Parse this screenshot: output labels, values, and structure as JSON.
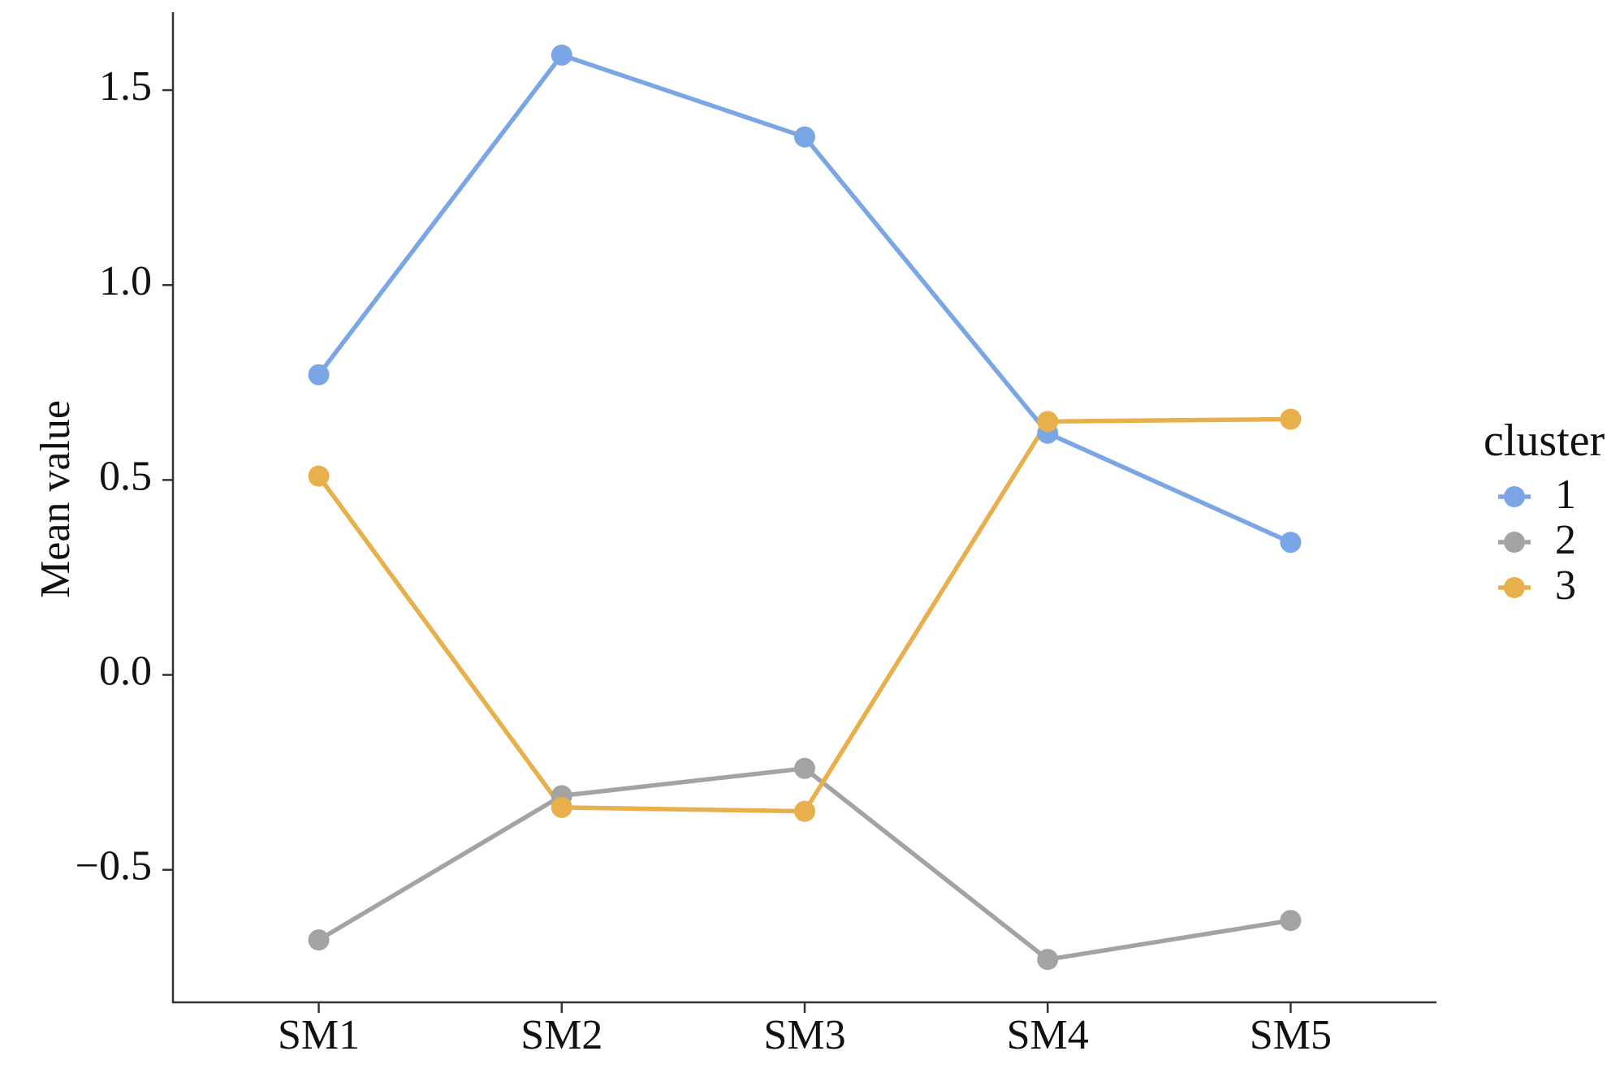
{
  "chart_data": {
    "type": "line",
    "y_label": "Mean value",
    "legend_title": "cluster",
    "categories": [
      "SM1",
      "SM2",
      "SM3",
      "SM4",
      "SM5"
    ],
    "series": [
      {
        "name": "1",
        "color": "#7ba6e6",
        "values": [
          0.77,
          1.59,
          1.38,
          0.62,
          0.34
        ]
      },
      {
        "name": "2",
        "color": "#a3a3a3",
        "values": [
          -0.68,
          -0.31,
          -0.24,
          -0.73,
          -0.63
        ]
      },
      {
        "name": "3",
        "color": "#e7b04c",
        "values": [
          0.51,
          -0.34,
          -0.35,
          0.65,
          0.656
        ]
      }
    ],
    "ylim": [
      -0.84,
      1.7
    ],
    "yticks": [
      {
        "value": -0.5,
        "label": "−0.5"
      },
      {
        "value": 0,
        "label": "0.0"
      },
      0.5,
      {
        "value": 1,
        "label": "1.0"
      },
      1.5
    ],
    "grid": false,
    "legend": "right"
  }
}
